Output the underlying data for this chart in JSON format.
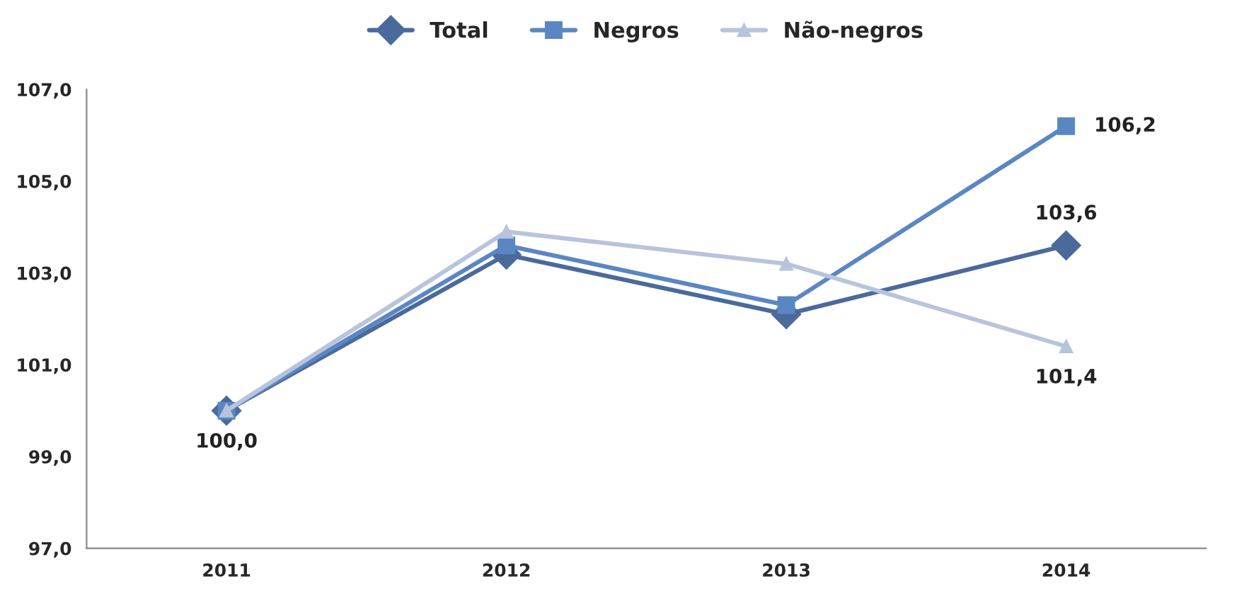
{
  "chart_data": {
    "type": "line",
    "categories": [
      "2011",
      "2012",
      "2013",
      "2014"
    ],
    "series": [
      {
        "name": "Total",
        "color": "#4a6a9c",
        "marker": "diamond",
        "values": [
          100.0,
          103.4,
          102.1,
          103.6
        ],
        "value_labels": [
          "100,0",
          null,
          null,
          "103,6"
        ]
      },
      {
        "name": "Negros",
        "color": "#5b86c4",
        "marker": "square",
        "values": [
          100.0,
          103.6,
          102.3,
          106.2
        ],
        "value_labels": [
          null,
          null,
          null,
          "106,2"
        ]
      },
      {
        "name": "Não-negros",
        "color": "#b8c4dc",
        "marker": "triangle",
        "values": [
          100.0,
          103.9,
          103.2,
          101.4
        ],
        "value_labels": [
          null,
          null,
          null,
          "101,4"
        ]
      }
    ],
    "ylim": [
      97,
      107
    ],
    "yticks": [
      {
        "value": 97,
        "label": "97,0"
      },
      {
        "value": 99,
        "label": "99,0"
      },
      {
        "value": 101,
        "label": "101,0"
      },
      {
        "value": 103,
        "label": "103,0"
      },
      {
        "value": 105,
        "label": "105,0"
      },
      {
        "value": 107,
        "label": "107,0"
      }
    ],
    "grid": false,
    "legend": "top"
  }
}
